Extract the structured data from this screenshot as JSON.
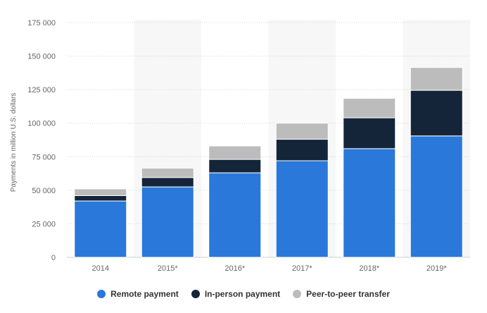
{
  "chart_data": {
    "type": "bar",
    "stacked": true,
    "ylabel": "Payments in million U.S. dollars",
    "xlabel": "",
    "ylim": [
      0,
      175000
    ],
    "yticks": [
      "0",
      "25 000",
      "50 000",
      "75 000",
      "100 000",
      "125 000",
      "150 000",
      "175 000"
    ],
    "ytick_values": [
      0,
      25000,
      50000,
      75000,
      100000,
      125000,
      150000,
      175000
    ],
    "categories": [
      "2014",
      "2015*",
      "2016*",
      "2017*",
      "2018*",
      "2019*"
    ],
    "series": [
      {
        "name": "Remote payment",
        "color": "#2a78da",
        "values": [
          42000,
          52500,
          63000,
          72000,
          81000,
          90500
        ]
      },
      {
        "name": "In-person payment",
        "color": "#14253a",
        "values": [
          4000,
          7000,
          10000,
          16000,
          23000,
          34000
        ]
      },
      {
        "name": "Peer-to-peer transfer",
        "color": "#bcbcbc",
        "values": [
          5000,
          7000,
          10000,
          12000,
          14500,
          17000
        ]
      }
    ],
    "grid": true,
    "legend_position": "bottom"
  }
}
